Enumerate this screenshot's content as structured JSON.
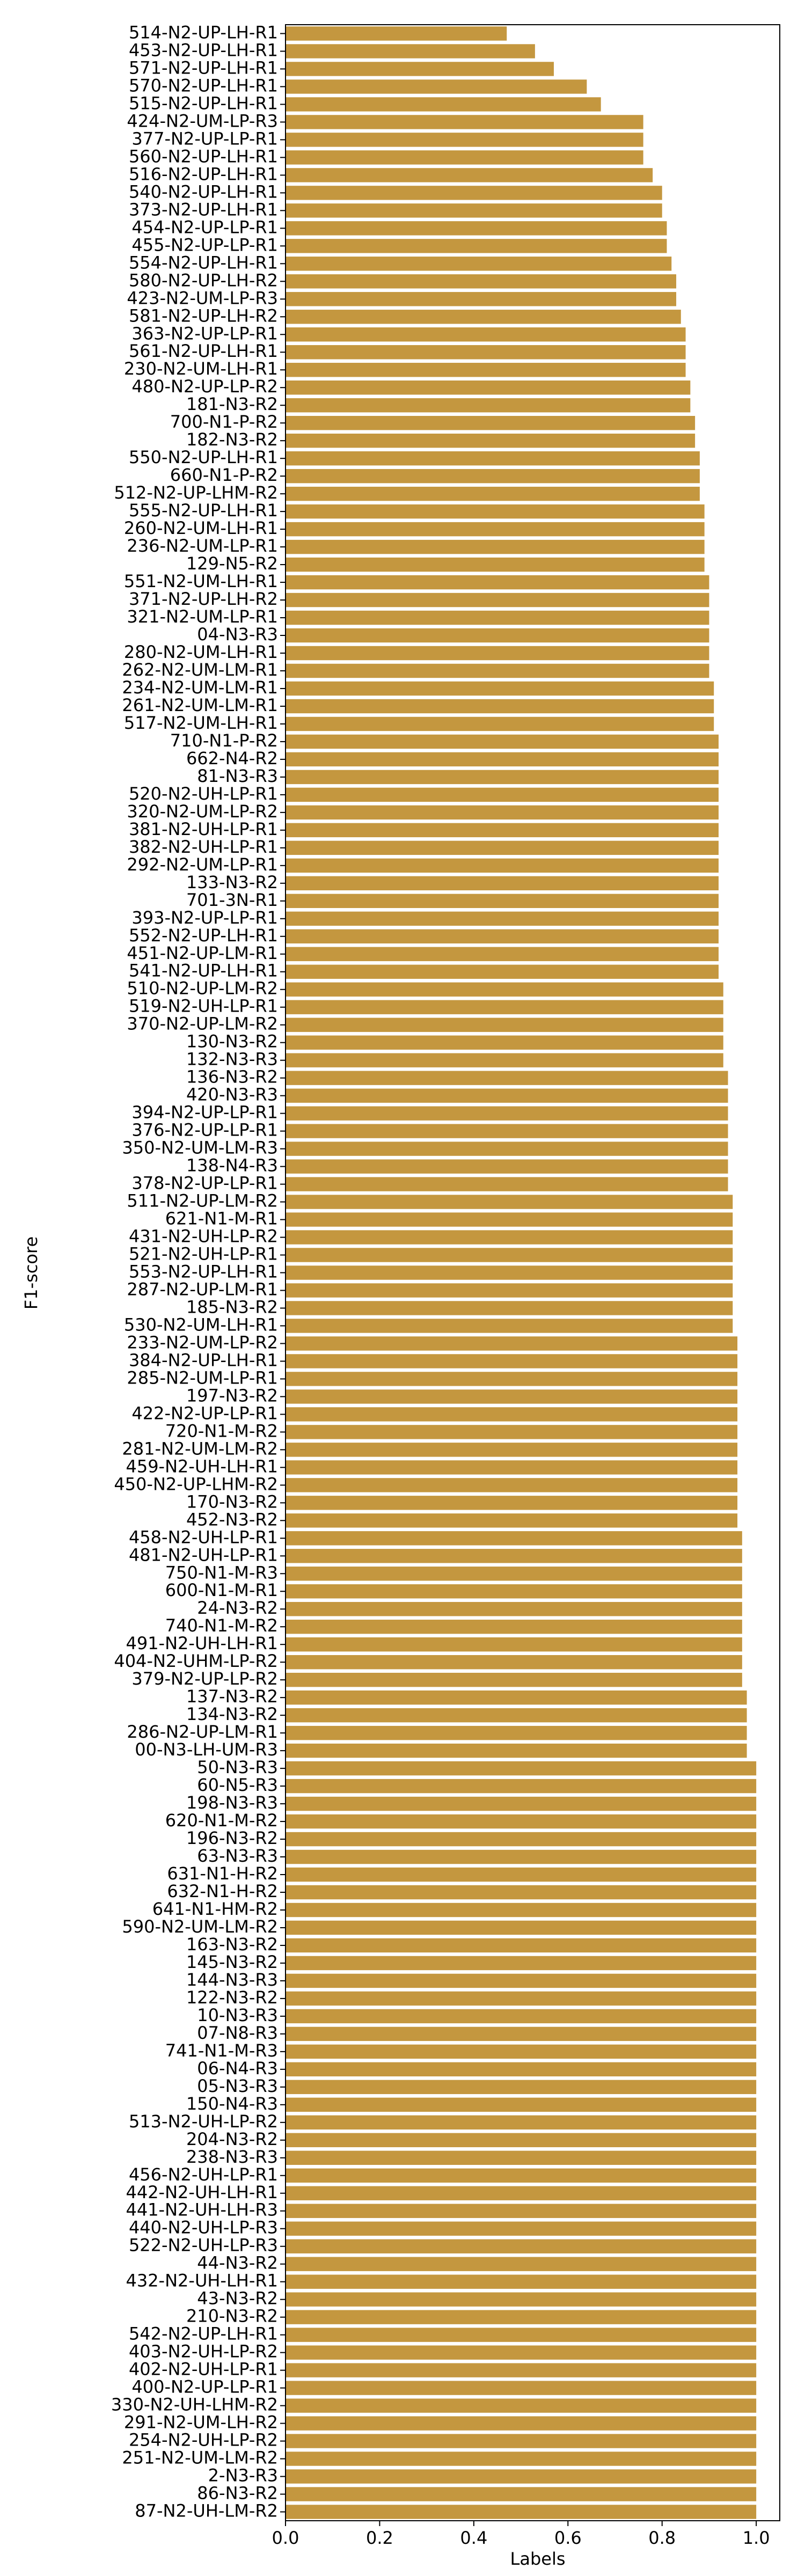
{
  "chart_data": {
    "type": "barh",
    "xlabel": "Labels",
    "ylabel": "F1-score",
    "color": "#c4973f",
    "xlim": [
      0,
      1.05
    ],
    "xticks": [
      {
        "value": 0,
        "label": "0.0"
      },
      0.2,
      0.4,
      0.6,
      0.8,
      {
        "value": 1,
        "label": "1.0"
      }
    ],
    "categories": [
      "514-N2-UP-LH-R1",
      "453-N2-UP-LH-R1",
      "571-N2-UP-LH-R1",
      "570-N2-UP-LH-R1",
      "515-N2-UP-LH-R1",
      "424-N2-UM-LP-R3",
      "377-N2-UP-LP-R1",
      "560-N2-UP-LH-R1",
      "516-N2-UP-LH-R1",
      "540-N2-UP-LH-R1",
      "373-N2-UP-LH-R1",
      "454-N2-UP-LP-R1",
      "455-N2-UP-LP-R1",
      "554-N2-UP-LH-R1",
      "580-N2-UP-LH-R2",
      "423-N2-UM-LP-R3",
      "581-N2-UP-LH-R2",
      "363-N2-UP-LP-R1",
      "561-N2-UP-LH-R1",
      "230-N2-UM-LH-R1",
      "480-N2-UP-LP-R2",
      "181-N3-R2",
      "700-N1-P-R2",
      "182-N3-R2",
      "550-N2-UP-LH-R1",
      "660-N1-P-R2",
      "512-N2-UP-LHM-R2",
      "555-N2-UP-LH-R1",
      "260-N2-UM-LH-R1",
      "236-N2-UM-LP-R1",
      "129-N5-R2",
      "551-N2-UM-LH-R1",
      "371-N2-UP-LH-R2",
      "321-N2-UM-LP-R1",
      "04-N3-R3",
      "280-N2-UM-LH-R1",
      "262-N2-UM-LM-R1",
      "234-N2-UM-LM-R1",
      "261-N2-UM-LM-R1",
      "517-N2-UM-LH-R1",
      "710-N1-P-R2",
      "662-N4-R2",
      "81-N3-R3",
      "520-N2-UH-LP-R1",
      "320-N2-UM-LP-R2",
      "381-N2-UH-LP-R1",
      "382-N2-UH-LP-R1",
      "292-N2-UM-LP-R1",
      "133-N3-R2",
      "701-3N-R1",
      "393-N2-UP-LP-R1",
      "552-N2-UP-LH-R1",
      "451-N2-UP-LM-R1",
      "541-N2-UP-LH-R1",
      "510-N2-UP-LM-R2",
      "519-N2-UH-LP-R1",
      "370-N2-UP-LM-R2",
      "130-N3-R2",
      "132-N3-R3",
      "136-N3-R2",
      "420-N3-R3",
      "394-N2-UP-LP-R1",
      "376-N2-UP-LP-R1",
      "350-N2-UM-LM-R3",
      "138-N4-R3",
      "378-N2-UP-LP-R1",
      "511-N2-UP-LM-R2",
      "621-N1-M-R1",
      "431-N2-UH-LP-R2",
      "521-N2-UH-LP-R1",
      "553-N2-UP-LH-R1",
      "287-N2-UP-LM-R1",
      "185-N3-R2",
      "530-N2-UM-LH-R1",
      "233-N2-UM-LP-R2",
      "384-N2-UP-LH-R1",
      "285-N2-UM-LP-R1",
      "197-N3-R2",
      "422-N2-UP-LP-R1",
      "720-N1-M-R2",
      "281-N2-UM-LM-R2",
      "459-N2-UH-LH-R1",
      "450-N2-UP-LHM-R2",
      "170-N3-R2",
      "452-N3-R2",
      "458-N2-UH-LP-R1",
      "481-N2-UH-LP-R1",
      "750-N1-M-R3",
      "600-N1-M-R1",
      "24-N3-R2",
      "740-N1-M-R2",
      "491-N2-UH-LH-R1",
      "404-N2-UHM-LP-R2",
      "379-N2-UP-LP-R2",
      "137-N3-R2",
      "134-N3-R2",
      "286-N2-UP-LM-R1",
      "00-N3-LH-UM-R3",
      "50-N3-R3",
      "60-N5-R3",
      "198-N3-R3",
      "620-N1-M-R2",
      "196-N3-R2",
      "63-N3-R3",
      "631-N1-H-R2",
      "632-N1-H-R2",
      "641-N1-HM-R2",
      "590-N2-UM-LM-R2",
      "163-N3-R2",
      "145-N3-R2",
      "144-N3-R3",
      "122-N3-R2",
      "10-N3-R3",
      "07-N8-R3",
      "741-N1-M-R3",
      "06-N4-R3",
      "05-N3-R3",
      "150-N4-R3",
      "513-N2-UH-LP-R2",
      "204-N3-R2",
      "238-N3-R3",
      "456-N2-UH-LP-R1",
      "442-N2-UH-LH-R1",
      "441-N2-UH-LH-R3",
      "440-N2-UH-LP-R3",
      "522-N2-UH-LP-R3",
      "44-N3-R2",
      "432-N2-UH-LH-R1",
      "43-N3-R2",
      "210-N3-R2",
      "542-N2-UP-LH-R1",
      "403-N2-UH-LP-R2",
      "402-N2-UH-LP-R1",
      "400-N2-UP-LP-R1",
      "330-N2-UH-LHM-R2",
      "291-N2-UM-LH-R2",
      "254-N2-UH-LP-R2",
      "251-N2-UM-LM-R2",
      "2-N3-R3",
      "86-N3-R2",
      "87-N2-UH-LM-R2"
    ],
    "values": [
      0.47,
      0.53,
      0.57,
      0.64,
      0.67,
      0.76,
      0.76,
      0.76,
      0.78,
      0.8,
      0.8,
      0.81,
      0.81,
      0.82,
      0.83,
      0.83,
      0.84,
      0.85,
      0.85,
      0.85,
      0.86,
      0.86,
      0.87,
      0.87,
      0.88,
      0.88,
      0.88,
      0.89,
      0.89,
      0.89,
      0.89,
      0.9,
      0.9,
      0.9,
      0.9,
      0.9,
      0.9,
      0.91,
      0.91,
      0.91,
      0.92,
      0.92,
      0.92,
      0.92,
      0.92,
      0.92,
      0.92,
      0.92,
      0.92,
      0.92,
      0.92,
      0.92,
      0.92,
      0.92,
      0.93,
      0.93,
      0.93,
      0.93,
      0.93,
      0.94,
      0.94,
      0.94,
      0.94,
      0.94,
      0.94,
      0.94,
      0.95,
      0.95,
      0.95,
      0.95,
      0.95,
      0.95,
      0.95,
      0.95,
      0.96,
      0.96,
      0.96,
      0.96,
      0.96,
      0.96,
      0.96,
      0.96,
      0.96,
      0.96,
      0.96,
      0.97,
      0.97,
      0.97,
      0.97,
      0.97,
      0.97,
      0.97,
      0.97,
      0.97,
      0.98,
      0.98,
      0.98,
      0.98,
      1,
      1,
      1,
      1,
      1,
      1,
      1,
      1,
      1,
      1,
      1,
      1,
      1,
      1,
      1,
      1,
      1,
      1,
      1,
      1,
      1,
      1,
      1,
      1,
      1,
      1,
      1,
      1,
      1,
      1,
      1,
      1,
      1,
      1,
      1,
      1,
      1,
      1,
      1,
      1,
      1,
      1,
      1
    ]
  }
}
